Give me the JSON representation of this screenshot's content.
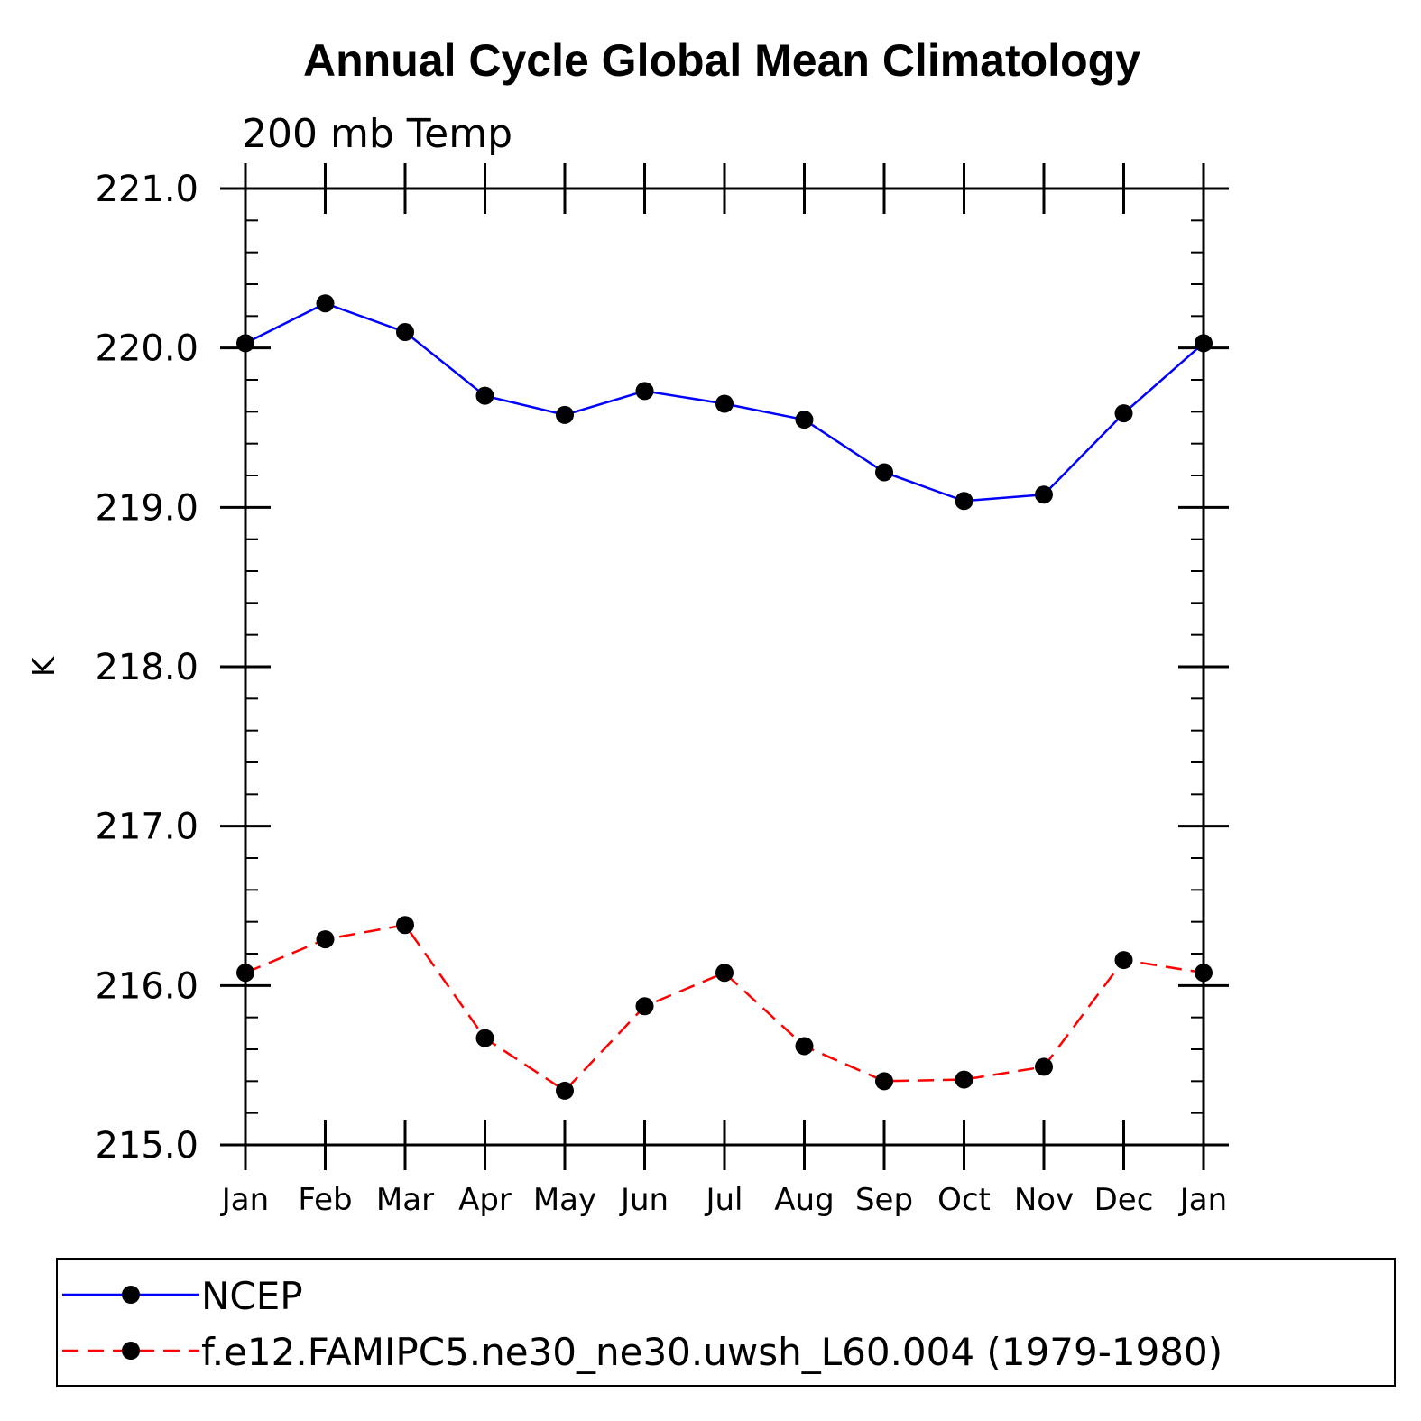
{
  "chart_data": {
    "type": "line",
    "title": "Annual Cycle Global Mean Climatology",
    "subtitle": "200 mb Temp",
    "xlabel": "",
    "ylabel": "K",
    "categories": [
      "Jan",
      "Feb",
      "Mar",
      "Apr",
      "May",
      "Jun",
      "Jul",
      "Aug",
      "Sep",
      "Oct",
      "Nov",
      "Dec",
      "Jan"
    ],
    "ylim": [
      215.0,
      221.0
    ],
    "yticks": [
      "215.0",
      "216.0",
      "217.0",
      "218.0",
      "219.0",
      "220.0",
      "221.0"
    ],
    "series": [
      {
        "name": "NCEP",
        "color": "#0000ff",
        "dash": "solid",
        "values": [
          220.03,
          220.28,
          220.1,
          219.7,
          219.58,
          219.73,
          219.65,
          219.55,
          219.22,
          219.04,
          219.08,
          219.59,
          220.03
        ]
      },
      {
        "name": "f.e12.FAMIPC5.ne30_ne30.uwsh_L60.004 (1979-1980)",
        "color": "#ff0000",
        "dash": "dashed",
        "values": [
          216.08,
          216.29,
          216.38,
          215.67,
          215.34,
          215.87,
          216.08,
          215.62,
          215.4,
          215.41,
          215.49,
          216.16,
          216.08
        ]
      }
    ],
    "legend_position": "bottom"
  }
}
